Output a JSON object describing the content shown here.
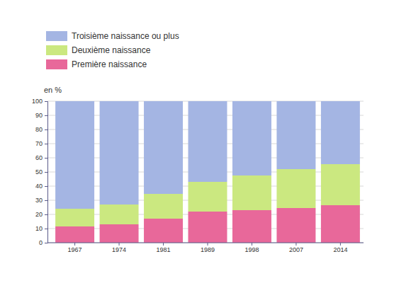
{
  "chart_data": {
    "type": "bar",
    "stacked": true,
    "grid": true,
    "legend": "top-left",
    "y_label": "en %",
    "categories": [
      "1967",
      "1974",
      "1981",
      "1989",
      "1998",
      "2007",
      "2014"
    ],
    "series": [
      {
        "name": "Première naissance",
        "color": "#e8689a",
        "values": [
          11.5,
          13,
          17,
          22,
          23,
          24.5,
          26.5
        ]
      },
      {
        "name": "Deuxième naissance",
        "color": "#cbe880",
        "values": [
          12.5,
          14,
          17.5,
          21,
          24.5,
          27.5,
          29
        ]
      },
      {
        "name": "Troisième naissance ou plus",
        "color": "#a4b5e3",
        "values": [
          76,
          73,
          65.5,
          57,
          52.5,
          48,
          44.5
        ]
      }
    ],
    "ylim": [
      0,
      100
    ],
    "yticks": [
      0,
      10,
      20,
      30,
      40,
      50,
      60,
      70,
      80,
      90,
      100
    ]
  }
}
